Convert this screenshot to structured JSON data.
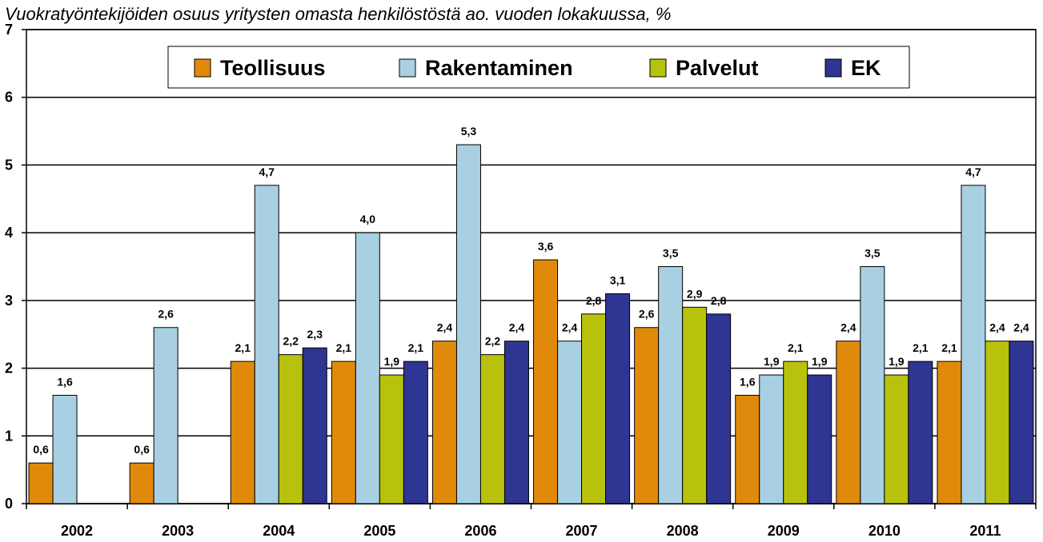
{
  "chart_data": {
    "type": "bar",
    "title": "Vuokratyöntekijöiden osuus yritysten omasta henkilöstöstä ao. vuoden lokakuussa, %",
    "xlabel": "",
    "ylabel": "",
    "ylim": [
      0,
      7
    ],
    "yticks": [
      "0",
      "1",
      "2",
      "3",
      "4",
      "5",
      "6",
      "7"
    ],
    "grid": true,
    "legend_position": "top",
    "categories": [
      "2002",
      "2003",
      "2004",
      "2005",
      "2006",
      "2007",
      "2008",
      "2009",
      "2010",
      "2011"
    ],
    "series": [
      {
        "name": "Teollisuus",
        "color": "#E08A0C",
        "values": [
          0.6,
          0.6,
          2.1,
          2.1,
          2.4,
          3.6,
          2.6,
          1.6,
          2.4,
          2.1
        ],
        "labels": [
          "0,6",
          "0,6",
          "2,1",
          "2,1",
          "2,4",
          "3,6",
          "2,6",
          "1,6",
          "2,4",
          "2,1"
        ]
      },
      {
        "name": "Rakentaminen",
        "color": "#A8D0E2",
        "values": [
          1.6,
          2.6,
          4.7,
          4.0,
          5.3,
          2.4,
          3.5,
          1.9,
          3.5,
          4.7
        ],
        "labels": [
          "1,6",
          "2,6",
          "4,7",
          "4,0",
          "5,3",
          "2,4",
          "3,5",
          "1,9",
          "3,5",
          "4,7"
        ]
      },
      {
        "name": "Palvelut",
        "color": "#B8C20C",
        "values": [
          null,
          null,
          2.2,
          1.9,
          2.2,
          2.8,
          2.9,
          2.1,
          1.9,
          2.4
        ],
        "labels": [
          "",
          "",
          "2,2",
          "1,9",
          "2,2",
          "2,8",
          "2,9",
          "2,1",
          "1,9",
          "2,4"
        ]
      },
      {
        "name": "EK",
        "color": "#2E3592",
        "values": [
          null,
          null,
          2.3,
          2.1,
          2.4,
          3.1,
          2.8,
          1.9,
          2.1,
          2.4
        ],
        "labels": [
          "",
          "",
          "2,3",
          "2,1",
          "2,4",
          "3,1",
          "2,8",
          "1,9",
          "2,1",
          "2,4"
        ]
      }
    ]
  }
}
